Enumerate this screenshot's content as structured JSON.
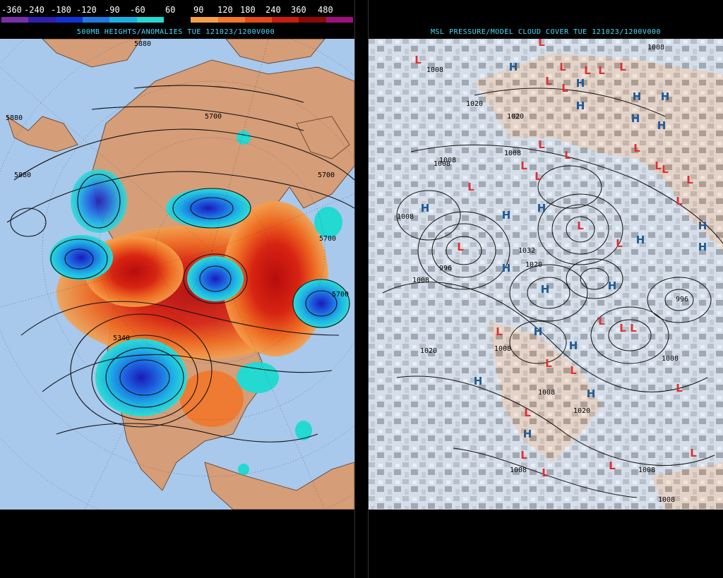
{
  "scale": {
    "labels": [
      "-360",
      "-240",
      "-180",
      "-120",
      "-90",
      "-60",
      "60",
      "90",
      "120",
      "180",
      "240",
      "360",
      "480"
    ],
    "colors": [
      "#7a2ea8",
      "#2f1fb0",
      "#0f33d8",
      "#1f79e0",
      "#1bb0e4",
      "#23d9d2",
      "#000000",
      "#f6a04a",
      "#f2782a",
      "#e44a18",
      "#c81d10",
      "#8b0a08",
      "#a0107e"
    ]
  },
  "left_panel": {
    "title": "500MB HEIGHTS/ANOMALIES TUE 121023/1200V000",
    "contour_labels": [
      "5880",
      "5880",
      "5880",
      "5700",
      "5700",
      "5700",
      "5700",
      "5340"
    ]
  },
  "right_panel": {
    "title": "MSL PRESSURE/MODEL CLOUD COVER TUE 121023/1200V000",
    "pressure_labels": [
      "1008",
      "1008",
      "1020",
      "1020",
      "1008",
      "1008",
      "1032",
      "1020",
      "1008",
      "1020",
      "1008",
      "996",
      "996",
      "1008",
      "1008",
      "1008",
      "1020",
      "1008",
      "1008",
      "1008",
      "1008"
    ],
    "high_symbol": "H",
    "low_symbol": "L"
  },
  "colors": {
    "ocean": "#a8c8ec",
    "land": "#d59d78",
    "high": "#1d5a9a",
    "low": "#e03030",
    "title": "#44dfff"
  }
}
